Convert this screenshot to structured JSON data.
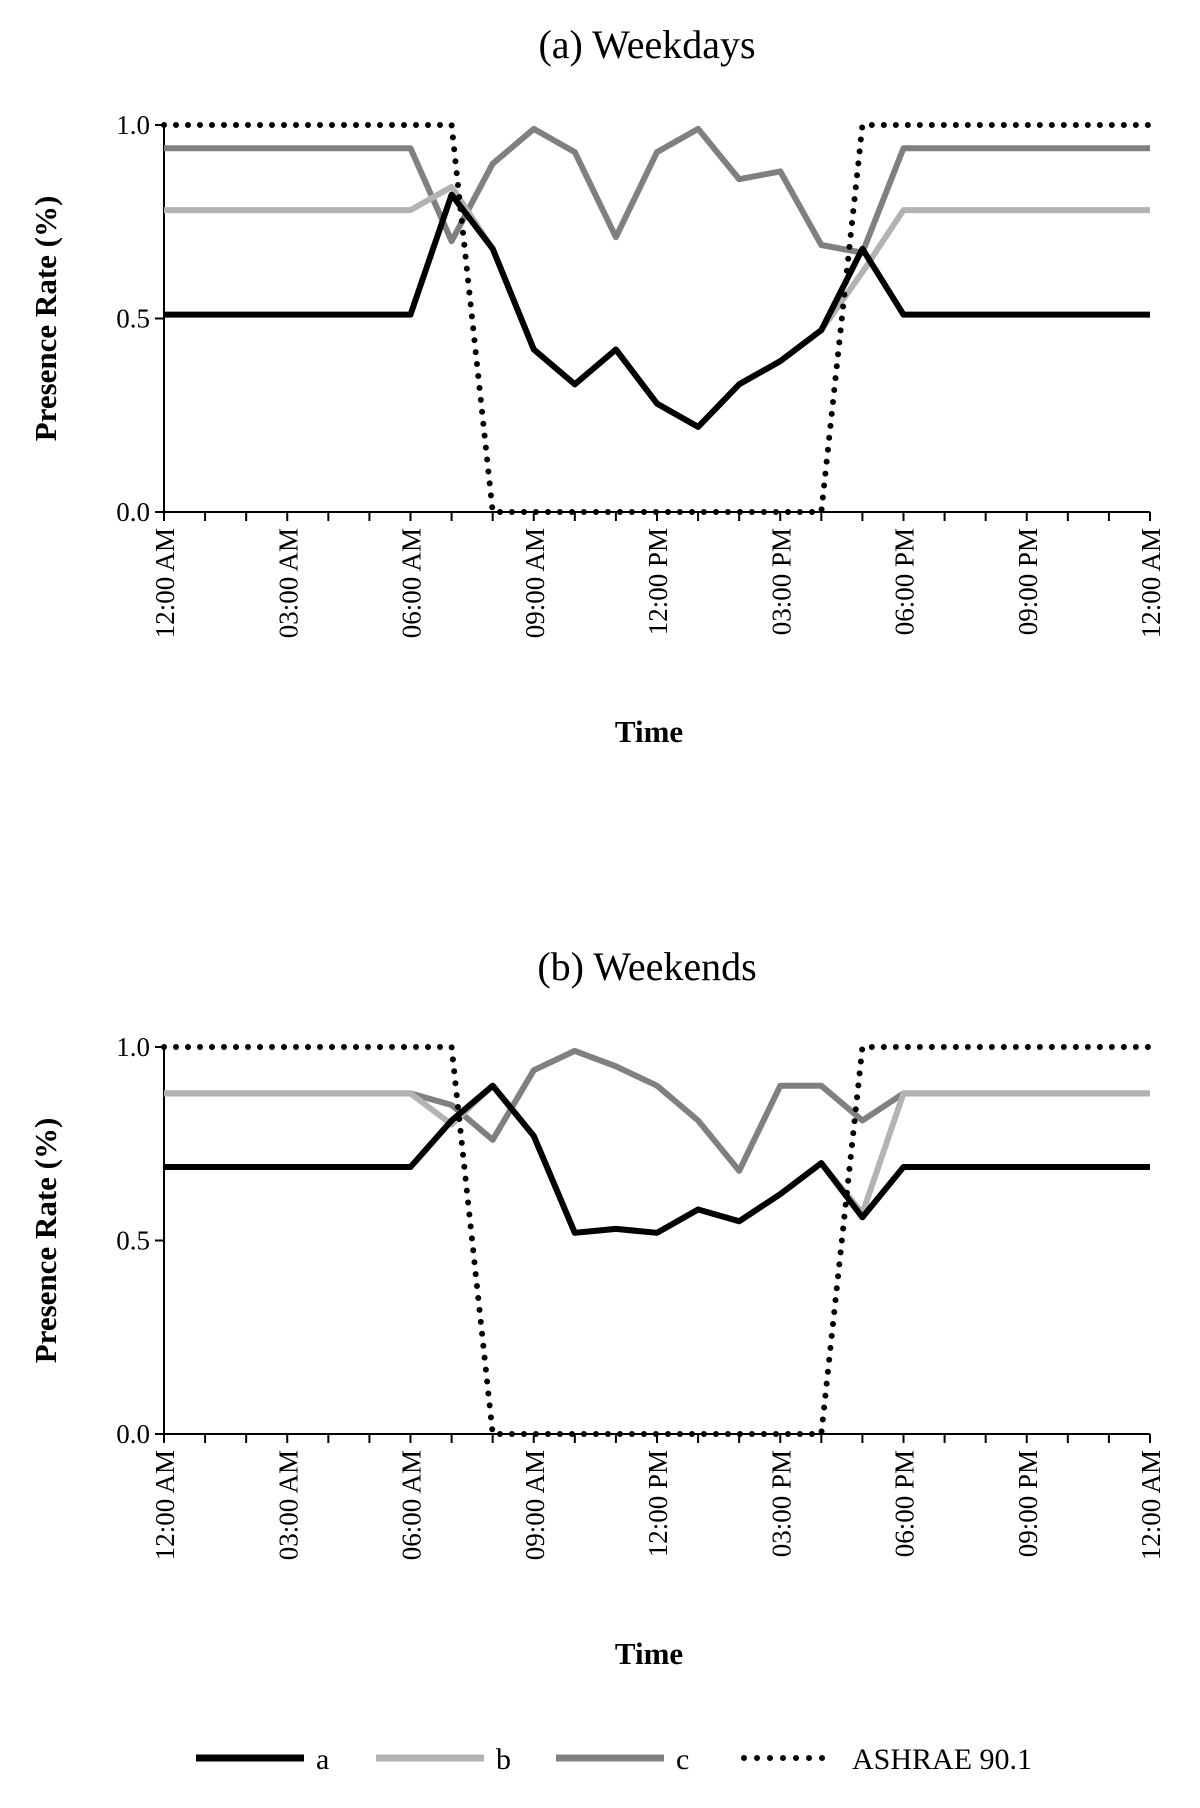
{
  "chart_data": [
    {
      "type": "line",
      "title": "(a) Weekdays",
      "xlabel": "Time",
      "ylabel": "Presence Rate  (%)",
      "x": [
        0,
        1,
        2,
        3,
        4,
        5,
        6,
        7,
        8,
        9,
        10,
        11,
        12,
        13,
        14,
        15,
        16,
        17,
        18,
        19,
        20,
        21,
        22,
        23,
        24
      ],
      "xticks": [
        0,
        3,
        6,
        9,
        12,
        15,
        18,
        21,
        24
      ],
      "xtick_labels": [
        "12:00 AM",
        "03:00 AM",
        "06:00 AM",
        "09:00 AM",
        "12:00 PM",
        "03:00 PM",
        "06:00 PM",
        "09:00 PM",
        "12:00 AM"
      ],
      "ylim": [
        0,
        1
      ],
      "yticks": [
        0,
        0.5,
        1
      ],
      "ytick_labels": [
        "0.0",
        "0.5",
        "1.0"
      ],
      "series": [
        {
          "name": "a",
          "color": "#000000",
          "style": "solid",
          "values": [
            0.51,
            0.51,
            0.51,
            0.51,
            0.51,
            0.51,
            0.51,
            0.82,
            0.68,
            0.42,
            0.33,
            0.42,
            0.28,
            0.22,
            0.33,
            0.39,
            0.47,
            0.68,
            0.51,
            0.51,
            0.51,
            0.51,
            0.51,
            0.51,
            0.51
          ]
        },
        {
          "name": "b",
          "color": "#b3b3b3",
          "style": "solid",
          "values": [
            0.78,
            0.78,
            0.78,
            0.78,
            0.78,
            0.78,
            0.78,
            0.84,
            0.68,
            0.42,
            0.33,
            0.42,
            0.28,
            0.22,
            0.33,
            0.39,
            0.47,
            0.62,
            0.78,
            0.78,
            0.78,
            0.78,
            0.78,
            0.78,
            0.78
          ]
        },
        {
          "name": "c",
          "color": "#808080",
          "style": "solid",
          "values": [
            0.94,
            0.94,
            0.94,
            0.94,
            0.94,
            0.94,
            0.94,
            0.7,
            0.9,
            0.99,
            0.93,
            0.71,
            0.93,
            0.99,
            0.86,
            0.88,
            0.69,
            0.67,
            0.94,
            0.94,
            0.94,
            0.94,
            0.94,
            0.94,
            0.94
          ]
        },
        {
          "name": "ASHRAE 90.1",
          "color": "#000000",
          "style": "dotted",
          "values": [
            1,
            1,
            1,
            1,
            1,
            1,
            1,
            1,
            0,
            0,
            0,
            0,
            0,
            0,
            0,
            0,
            0,
            1,
            1,
            1,
            1,
            1,
            1,
            1,
            1
          ]
        }
      ]
    },
    {
      "type": "line",
      "title": "(b) Weekends",
      "xlabel": "Time",
      "ylabel": "Presence Rate  (%)",
      "x": [
        0,
        1,
        2,
        3,
        4,
        5,
        6,
        7,
        8,
        9,
        10,
        11,
        12,
        13,
        14,
        15,
        16,
        17,
        18,
        19,
        20,
        21,
        22,
        23,
        24
      ],
      "xticks": [
        0,
        3,
        6,
        9,
        12,
        15,
        18,
        21,
        24
      ],
      "xtick_labels": [
        "12:00 AM",
        "03:00 AM",
        "06:00 AM",
        "09:00 AM",
        "12:00 PM",
        "03:00 PM",
        "06:00 PM",
        "09:00 PM",
        "12:00 AM"
      ],
      "ylim": [
        0,
        1
      ],
      "yticks": [
        0,
        0.5,
        1
      ],
      "ytick_labels": [
        "0.0",
        "0.5",
        "1.0"
      ],
      "series": [
        {
          "name": "a",
          "color": "#000000",
          "style": "solid",
          "values": [
            0.69,
            0.69,
            0.69,
            0.69,
            0.69,
            0.69,
            0.69,
            0.81,
            0.9,
            0.77,
            0.52,
            0.53,
            0.52,
            0.58,
            0.55,
            0.62,
            0.7,
            0.56,
            0.69,
            0.69,
            0.69,
            0.69,
            0.69,
            0.69,
            0.69
          ]
        },
        {
          "name": "b",
          "color": "#b3b3b3",
          "style": "solid",
          "values": [
            0.88,
            0.88,
            0.88,
            0.88,
            0.88,
            0.88,
            0.88,
            0.8,
            0.9,
            0.77,
            0.52,
            0.53,
            0.52,
            0.58,
            0.55,
            0.62,
            0.7,
            0.57,
            0.88,
            0.88,
            0.88,
            0.88,
            0.88,
            0.88,
            0.88
          ]
        },
        {
          "name": "c",
          "color": "#808080",
          "style": "solid",
          "values": [
            0.88,
            0.88,
            0.88,
            0.88,
            0.88,
            0.88,
            0.88,
            0.85,
            0.76,
            0.94,
            0.99,
            0.95,
            0.9,
            0.81,
            0.68,
            0.9,
            0.9,
            0.81,
            0.88,
            0.88,
            0.88,
            0.88,
            0.88,
            0.88,
            0.88
          ]
        },
        {
          "name": "ASHRAE 90.1",
          "color": "#000000",
          "style": "dotted",
          "values": [
            1,
            1,
            1,
            1,
            1,
            1,
            1,
            1,
            0,
            0,
            0,
            0,
            0,
            0,
            0,
            0,
            0,
            1,
            1,
            1,
            1,
            1,
            1,
            1,
            1
          ]
        }
      ]
    }
  ],
  "legend": {
    "position": "bottom",
    "items": [
      {
        "label": "a",
        "color": "#000000",
        "style": "solid"
      },
      {
        "label": "b",
        "color": "#b3b3b3",
        "style": "solid"
      },
      {
        "label": "c",
        "color": "#808080",
        "style": "solid"
      },
      {
        "label": "ASHRAE 90.1",
        "color": "#000000",
        "style": "dotted"
      }
    ]
  }
}
